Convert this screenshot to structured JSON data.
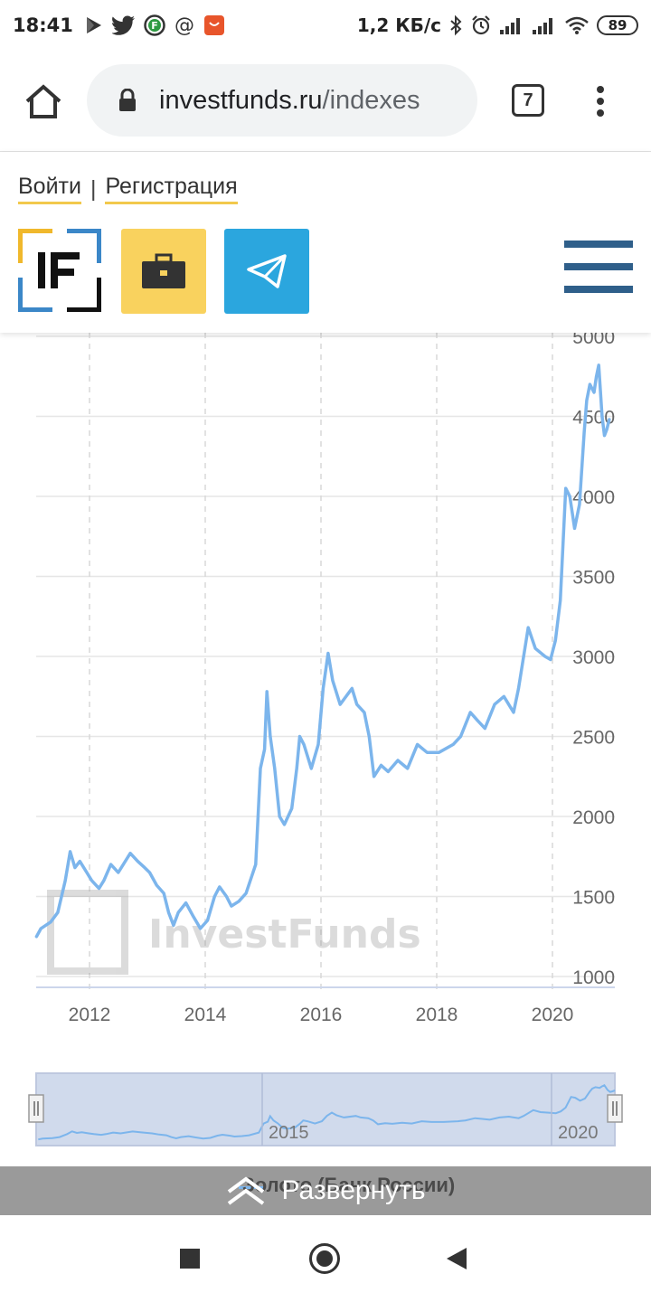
{
  "status_bar": {
    "time": "18:41",
    "speed": "1,2 КБ/с",
    "battery": "89",
    "icons": [
      "play-icon",
      "twitter-icon",
      "f-app-icon",
      "at-icon",
      "aliexpress-icon",
      "bluetooth-icon",
      "alarm-icon",
      "signal-icon",
      "signal-icon",
      "wifi-icon",
      "battery-icon"
    ]
  },
  "browser": {
    "url_host": "investfunds.ru",
    "url_path": "/indexes",
    "tab_count": "7"
  },
  "site": {
    "login": "Войти",
    "separator": "|",
    "register": "Регистрация",
    "logo_text": "IF",
    "colors": {
      "yellow": "#f9d25e",
      "telegram": "#2ba6de",
      "navy": "#2f5f8a",
      "line": "#7cb5ec"
    }
  },
  "chart_data": {
    "type": "line",
    "title": "",
    "xlabel": "",
    "ylabel": "",
    "ylim": [
      1000,
      5000
    ],
    "y_ticks": [
      "5000",
      "4500",
      "4000",
      "3500",
      "3000",
      "2500",
      "2000",
      "1500",
      "1000"
    ],
    "x_ticks": [
      "2012",
      "2014",
      "2016",
      "2018",
      "2020"
    ],
    "navigator_labels": [
      "2015",
      "2020"
    ],
    "watermark": "InvestFunds",
    "series": [
      {
        "name": "Золото (Банк России)",
        "color": "#7cb5ec",
        "points": [
          [
            "2011-02-01",
            1250
          ],
          [
            "2011-03-01",
            1300
          ],
          [
            "2011-05-01",
            1340
          ],
          [
            "2011-06-15",
            1400
          ],
          [
            "2011-08-01",
            1600
          ],
          [
            "2011-09-01",
            1780
          ],
          [
            "2011-10-01",
            1680
          ],
          [
            "2011-11-01",
            1720
          ],
          [
            "2011-12-15",
            1650
          ],
          [
            "2012-01-15",
            1600
          ],
          [
            "2012-03-01",
            1550
          ],
          [
            "2012-04-01",
            1600
          ],
          [
            "2012-05-15",
            1700
          ],
          [
            "2012-07-01",
            1650
          ],
          [
            "2012-09-15",
            1770
          ],
          [
            "2012-11-01",
            1720
          ],
          [
            "2012-12-15",
            1680
          ],
          [
            "2013-01-15",
            1650
          ],
          [
            "2013-03-01",
            1570
          ],
          [
            "2013-04-15",
            1520
          ],
          [
            "2013-05-15",
            1400
          ],
          [
            "2013-06-15",
            1320
          ],
          [
            "2013-07-15",
            1400
          ],
          [
            "2013-09-01",
            1460
          ],
          [
            "2013-10-15",
            1380
          ],
          [
            "2013-12-01",
            1300
          ],
          [
            "2014-01-15",
            1350
          ],
          [
            "2014-03-01",
            1500
          ],
          [
            "2014-04-01",
            1560
          ],
          [
            "2014-05-15",
            1500
          ],
          [
            "2014-06-15",
            1440
          ],
          [
            "2014-08-01",
            1470
          ],
          [
            "2014-09-15",
            1520
          ],
          [
            "2014-11-15",
            1700
          ],
          [
            "2014-12-15",
            2300
          ],
          [
            "2015-01-10",
            2420
          ],
          [
            "2015-01-25",
            2780
          ],
          [
            "2015-02-15",
            2500
          ],
          [
            "2015-03-15",
            2300
          ],
          [
            "2015-04-15",
            2000
          ],
          [
            "2015-05-15",
            1950
          ],
          [
            "2015-07-01",
            2050
          ],
          [
            "2015-08-01",
            2300
          ],
          [
            "2015-08-20",
            2500
          ],
          [
            "2015-09-15",
            2450
          ],
          [
            "2015-11-01",
            2300
          ],
          [
            "2015-12-15",
            2450
          ],
          [
            "2016-01-15",
            2800
          ],
          [
            "2016-02-15",
            3020
          ],
          [
            "2016-03-15",
            2850
          ],
          [
            "2016-05-01",
            2700
          ],
          [
            "2016-07-15",
            2800
          ],
          [
            "2016-08-15",
            2700
          ],
          [
            "2016-10-01",
            2650
          ],
          [
            "2016-11-01",
            2500
          ],
          [
            "2016-12-01",
            2250
          ],
          [
            "2017-01-15",
            2320
          ],
          [
            "2017-03-01",
            2280
          ],
          [
            "2017-05-01",
            2350
          ],
          [
            "2017-07-01",
            2300
          ],
          [
            "2017-09-01",
            2450
          ],
          [
            "2017-11-01",
            2400
          ],
          [
            "2018-01-15",
            2400
          ],
          [
            "2018-04-15",
            2450
          ],
          [
            "2018-06-01",
            2500
          ],
          [
            "2018-08-01",
            2650
          ],
          [
            "2018-09-15",
            2600
          ],
          [
            "2018-11-01",
            2550
          ],
          [
            "2019-01-01",
            2700
          ],
          [
            "2019-03-01",
            2750
          ],
          [
            "2019-05-01",
            2650
          ],
          [
            "2019-06-01",
            2800
          ],
          [
            "2019-08-01",
            3180
          ],
          [
            "2019-09-15",
            3050
          ],
          [
            "2019-11-15",
            3000
          ],
          [
            "2019-12-20",
            2980
          ],
          [
            "2020-01-20",
            3100
          ],
          [
            "2020-02-20",
            3350
          ],
          [
            "2020-03-10",
            3750
          ],
          [
            "2020-03-25",
            4050
          ],
          [
            "2020-04-20",
            4000
          ],
          [
            "2020-05-20",
            3800
          ],
          [
            "2020-06-20",
            3950
          ],
          [
            "2020-07-20",
            4400
          ],
          [
            "2020-08-05",
            4600
          ],
          [
            "2020-08-25",
            4700
          ],
          [
            "2020-09-20",
            4650
          ],
          [
            "2020-10-05",
            4750
          ],
          [
            "2020-10-20",
            4820
          ],
          [
            "2020-11-10",
            4500
          ],
          [
            "2020-11-25",
            4380
          ],
          [
            "2020-12-10",
            4420
          ],
          [
            "2020-12-25",
            4480
          ]
        ]
      }
    ]
  },
  "expand": {
    "label": "Развернуть",
    "legend_name": "Золото (Банк России)"
  }
}
